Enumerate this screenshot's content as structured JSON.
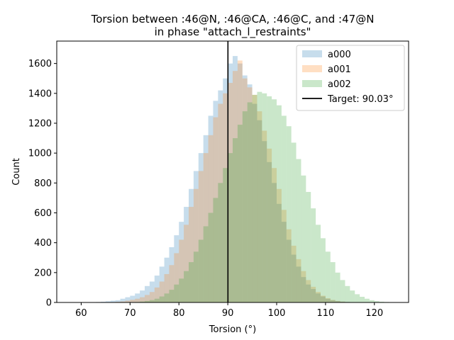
{
  "chart_data": {
    "type": "histogram",
    "title": [
      "Torsion between :46@N, :46@CA, :46@C, and :47@N",
      "in phase \"attach_l_restraints\""
    ],
    "xlabel": "Torsion (°)",
    "ylabel": "Count",
    "xlim": [
      55,
      127
    ],
    "ylim": [
      0,
      1750
    ],
    "xticks": [
      60,
      70,
      80,
      90,
      100,
      110,
      120
    ],
    "yticks": [
      0,
      200,
      400,
      600,
      800,
      1000,
      1200,
      1400,
      1600
    ],
    "grid": false,
    "legend_position": "top-right",
    "bin_width": 1,
    "series": [
      {
        "name": "a000",
        "color": "#1f77b4",
        "alpha": 0.25,
        "bins": [
          [
            62,
            2
          ],
          [
            63,
            3
          ],
          [
            64,
            5
          ],
          [
            65,
            8
          ],
          [
            66,
            12
          ],
          [
            67,
            15
          ],
          [
            68,
            25
          ],
          [
            69,
            35
          ],
          [
            70,
            45
          ],
          [
            71,
            60
          ],
          [
            72,
            80
          ],
          [
            73,
            110
          ],
          [
            74,
            140
          ],
          [
            75,
            180
          ],
          [
            76,
            240
          ],
          [
            77,
            300
          ],
          [
            78,
            370
          ],
          [
            79,
            450
          ],
          [
            80,
            540
          ],
          [
            81,
            640
          ],
          [
            82,
            760
          ],
          [
            83,
            880
          ],
          [
            84,
            1000
          ],
          [
            85,
            1120
          ],
          [
            86,
            1250
          ],
          [
            87,
            1350
          ],
          [
            88,
            1420
          ],
          [
            89,
            1500
          ],
          [
            90,
            1600
          ],
          [
            91,
            1650
          ],
          [
            92,
            1600
          ],
          [
            93,
            1520
          ],
          [
            94,
            1460
          ],
          [
            95,
            1330
          ],
          [
            96,
            1220
          ],
          [
            97,
            1080
          ],
          [
            98,
            940
          ],
          [
            99,
            800
          ],
          [
            100,
            660
          ],
          [
            101,
            540
          ],
          [
            102,
            420
          ],
          [
            103,
            320
          ],
          [
            104,
            240
          ],
          [
            105,
            170
          ],
          [
            106,
            120
          ],
          [
            107,
            90
          ],
          [
            108,
            60
          ],
          [
            109,
            40
          ],
          [
            110,
            25
          ],
          [
            111,
            15
          ],
          [
            112,
            10
          ],
          [
            113,
            6
          ],
          [
            114,
            4
          ],
          [
            115,
            2
          ]
        ]
      },
      {
        "name": "a001",
        "color": "#ff7f0e",
        "alpha": 0.25,
        "bins": [
          [
            66,
            2
          ],
          [
            67,
            4
          ],
          [
            68,
            7
          ],
          [
            69,
            12
          ],
          [
            70,
            18
          ],
          [
            71,
            25
          ],
          [
            72,
            35
          ],
          [
            73,
            50
          ],
          [
            74,
            70
          ],
          [
            75,
            100
          ],
          [
            76,
            140
          ],
          [
            77,
            190
          ],
          [
            78,
            250
          ],
          [
            79,
            330
          ],
          [
            80,
            420
          ],
          [
            81,
            520
          ],
          [
            82,
            640
          ],
          [
            83,
            760
          ],
          [
            84,
            880
          ],
          [
            85,
            1000
          ],
          [
            86,
            1120
          ],
          [
            87,
            1240
          ],
          [
            88,
            1330
          ],
          [
            89,
            1400
          ],
          [
            90,
            1470
          ],
          [
            91,
            1550
          ],
          [
            92,
            1620
          ],
          [
            93,
            1500
          ],
          [
            94,
            1440
          ],
          [
            95,
            1390
          ],
          [
            96,
            1280
          ],
          [
            97,
            1150
          ],
          [
            98,
            1030
          ],
          [
            99,
            900
          ],
          [
            100,
            760
          ],
          [
            101,
            620
          ],
          [
            102,
            490
          ],
          [
            103,
            380
          ],
          [
            104,
            290
          ],
          [
            105,
            210
          ],
          [
            106,
            150
          ],
          [
            107,
            105
          ],
          [
            108,
            70
          ],
          [
            109,
            45
          ],
          [
            110,
            28
          ],
          [
            111,
            17
          ],
          [
            112,
            10
          ],
          [
            113,
            6
          ],
          [
            114,
            3
          ],
          [
            115,
            2
          ]
        ]
      },
      {
        "name": "a002",
        "color": "#2ca02c",
        "alpha": 0.25,
        "bins": [
          [
            71,
            3
          ],
          [
            72,
            6
          ],
          [
            73,
            10
          ],
          [
            74,
            16
          ],
          [
            75,
            25
          ],
          [
            76,
            40
          ],
          [
            77,
            60
          ],
          [
            78,
            85
          ],
          [
            79,
            120
          ],
          [
            80,
            160
          ],
          [
            81,
            210
          ],
          [
            82,
            270
          ],
          [
            83,
            340
          ],
          [
            84,
            420
          ],
          [
            85,
            510
          ],
          [
            86,
            600
          ],
          [
            87,
            700
          ],
          [
            88,
            800
          ],
          [
            89,
            900
          ],
          [
            90,
            1000
          ],
          [
            91,
            1100
          ],
          [
            92,
            1190
          ],
          [
            93,
            1280
          ],
          [
            94,
            1340
          ],
          [
            95,
            1390
          ],
          [
            96,
            1410
          ],
          [
            97,
            1400
          ],
          [
            98,
            1380
          ],
          [
            99,
            1360
          ],
          [
            100,
            1320
          ],
          [
            101,
            1250
          ],
          [
            102,
            1180
          ],
          [
            103,
            1070
          ],
          [
            104,
            960
          ],
          [
            105,
            850
          ],
          [
            106,
            740
          ],
          [
            107,
            630
          ],
          [
            108,
            520
          ],
          [
            109,
            430
          ],
          [
            110,
            340
          ],
          [
            111,
            270
          ],
          [
            112,
            200
          ],
          [
            113,
            150
          ],
          [
            114,
            110
          ],
          [
            115,
            80
          ],
          [
            116,
            55
          ],
          [
            117,
            38
          ],
          [
            118,
            25
          ],
          [
            119,
            15
          ],
          [
            120,
            9
          ],
          [
            121,
            5
          ],
          [
            122,
            3
          ],
          [
            123,
            2
          ]
        ]
      }
    ],
    "target": {
      "label": "Target: 90.03°",
      "x": 90.03,
      "color": "#000000"
    }
  }
}
